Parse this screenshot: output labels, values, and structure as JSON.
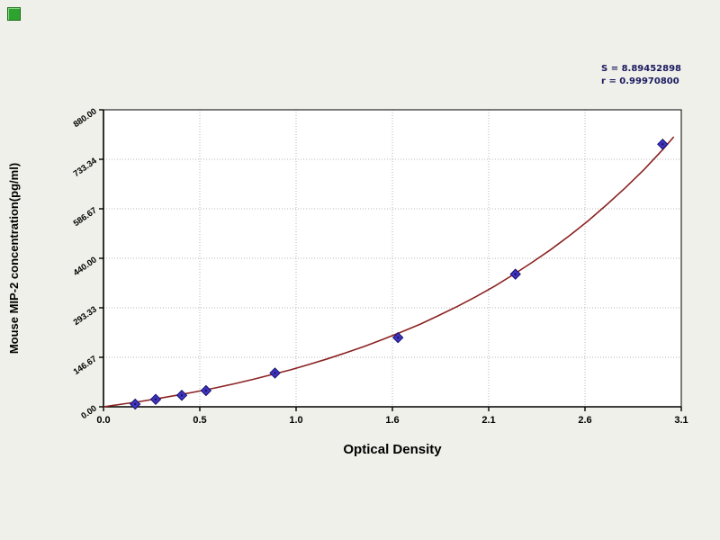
{
  "stats_panel": {
    "lines": [
      "S = 8.89452898",
      "r = 0.99970800"
    ]
  },
  "chart_data": {
    "type": "scatter",
    "title": "",
    "xlabel": "Optical Density",
    "ylabel": "Mouse MIP-2 concentration(pg/ml)",
    "xlim": [
      0.0,
      3.1
    ],
    "ylim": [
      0.0,
      880.0
    ],
    "grid": true,
    "legend": "none",
    "x_tick_labels": [
      "0.0",
      "0.5",
      "1.0",
      "1.6",
      "2.1",
      "2.6",
      "3.1"
    ],
    "y_tick_labels": [
      "0.00",
      "146.67",
      "293.33",
      "440.00",
      "586.67",
      "733.34",
      "880.00"
    ],
    "annotations": [
      "S = 8.89452898",
      "r = 0.99970800"
    ],
    "series": [
      {
        "name": "standard-points",
        "type": "scatter",
        "marker": "diamond",
        "points": [
          [
            0.17,
            8
          ],
          [
            0.28,
            22
          ],
          [
            0.42,
            34
          ],
          [
            0.55,
            48
          ],
          [
            0.92,
            100
          ],
          [
            1.58,
            205
          ],
          [
            2.21,
            393
          ],
          [
            3.0,
            778
          ]
        ]
      },
      {
        "name": "fitted-curve",
        "type": "line",
        "points": [
          [
            0.0,
            0
          ],
          [
            0.1,
            8
          ],
          [
            0.2,
            16
          ],
          [
            0.3,
            25
          ],
          [
            0.4,
            35
          ],
          [
            0.5,
            45
          ],
          [
            0.6,
            56
          ],
          [
            0.7,
            68
          ],
          [
            0.8,
            81
          ],
          [
            0.9,
            95
          ],
          [
            1.0,
            109
          ],
          [
            1.1,
            125
          ],
          [
            1.2,
            142
          ],
          [
            1.3,
            160
          ],
          [
            1.4,
            179
          ],
          [
            1.5,
            200
          ],
          [
            1.6,
            222
          ],
          [
            1.7,
            245
          ],
          [
            1.8,
            271
          ],
          [
            1.9,
            298
          ],
          [
            2.0,
            327
          ],
          [
            2.1,
            358
          ],
          [
            2.2,
            392
          ],
          [
            2.3,
            428
          ],
          [
            2.4,
            466
          ],
          [
            2.5,
            507
          ],
          [
            2.6,
            551
          ],
          [
            2.7,
            599
          ],
          [
            2.8,
            649
          ],
          [
            2.9,
            703
          ],
          [
            3.0,
            762
          ],
          [
            3.06,
            800
          ]
        ]
      }
    ]
  },
  "colors": {
    "background": "#f0f0ea",
    "plot_bg": "#ffffff",
    "grid": "#b4b4b4",
    "axis": "#000000",
    "curve": "#8b2222",
    "marker_fill": "#4034c2",
    "marker_stroke": "#16126f",
    "marker_dot": "#1a1452",
    "stats_text": "#1a1a60",
    "icon_green": "#2fa32f"
  }
}
